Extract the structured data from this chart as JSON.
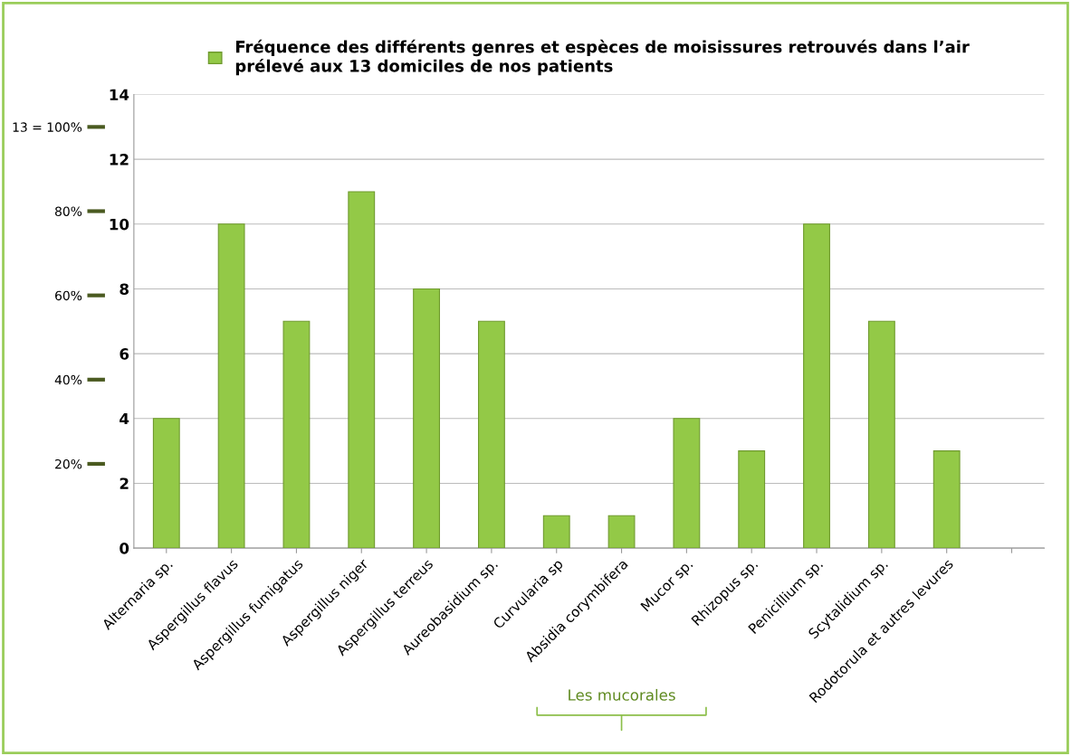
{
  "chart_data": {
    "type": "bar",
    "categories": [
      "Alternaria sp.",
      "Aspergillus flavus",
      "Aspergillus fumigatus",
      "Aspergillus niger",
      "Aspergillus terreus",
      "Aureobasidium sp.",
      "Curvularia sp",
      "Absidia corymbifera",
      "Mucor sp.",
      "Rhizopus sp.",
      "Penicillium sp.",
      "Scytalidium sp.",
      "Rodotorula et autres levures",
      null
    ],
    "series": [
      {
        "name": "Fréquence des différents genres et espèces de moisissures retrouvés dans l’air\nprélevé aux 13 domiciles de nos patients",
        "color": "#93c947",
        "values": [
          4,
          10,
          7,
          11,
          8,
          7,
          1,
          1,
          4,
          3,
          10,
          7,
          3,
          null
        ]
      }
    ],
    "ylim": [
      0,
      14
    ],
    "yticks": [
      0,
      2,
      4,
      6,
      8,
      10,
      12,
      14
    ],
    "y2lim": [
      0,
      107.7
    ],
    "y2ticks": [
      {
        "value": 20,
        "label": "20%"
      },
      {
        "value": 40,
        "label": "40%"
      },
      {
        "value": 60,
        "label": "60%"
      },
      {
        "value": 80,
        "label": "80%"
      },
      {
        "value": 100,
        "label": "13 = 100%"
      }
    ],
    "annotations": [
      "Les mucorales"
    ],
    "grid": "y",
    "legend": "top"
  }
}
